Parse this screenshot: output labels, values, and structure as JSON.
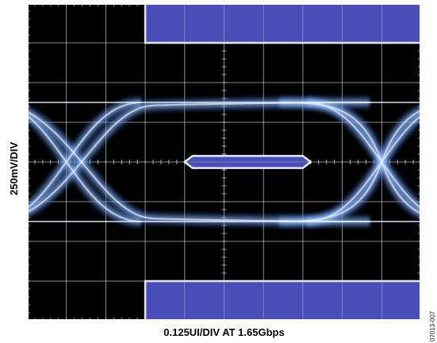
{
  "chart_data": {
    "type": "eye-diagram",
    "title": "",
    "xlabel": "0.125UI/DIV AT 1.65Gbps",
    "ylabel": "250mV/DIV",
    "x_per_div_ui": 0.125,
    "y_per_div_mv": 250,
    "data_rate": "1.65Gbps",
    "divisions": {
      "x": 10,
      "y": 8
    },
    "grid": true,
    "eye": {
      "crossing_points_ui": [
        0.0,
        1.0
      ],
      "high_level_mv": 375,
      "low_level_mv": -375,
      "inner_opening_mv": 625
    },
    "mask": {
      "center_polygon": {
        "ui": [
          0.375,
          0.4,
          0.75,
          0.775,
          0.75,
          0.4
        ],
        "mv": [
          0,
          38,
          38,
          0,
          -38,
          -38
        ]
      },
      "upper_limit_mv": 750,
      "lower_limit_mv": -750,
      "limit_ui_range": [
        0.25,
        1.125
      ]
    },
    "colors": {
      "screen": "#000000",
      "trace": "#9fc4ff",
      "mask_fill": "#4a4eb8",
      "mask_border": "#e8e8f0",
      "grid": "#cfcfcf"
    }
  },
  "figure_id": "07013-007"
}
